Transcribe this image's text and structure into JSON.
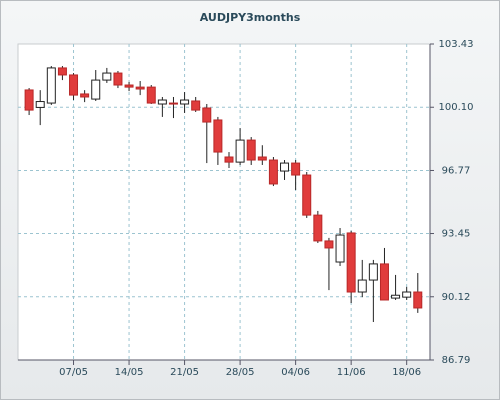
{
  "chart_data": {
    "type": "candlestick",
    "title": "AUDJPY3months",
    "categories": [
      null,
      null,
      null,
      null,
      "07/05",
      null,
      null,
      null,
      null,
      "14/05",
      null,
      null,
      null,
      null,
      "21/05",
      null,
      null,
      null,
      null,
      "28/05",
      null,
      null,
      null,
      null,
      "04/06",
      null,
      null,
      null,
      null,
      "11/06",
      null,
      null,
      null,
      null,
      "18/06",
      null
    ],
    "open": [
      101.01,
      100.09,
      100.32,
      102.17,
      101.8,
      100.8,
      100.53,
      101.53,
      101.9,
      101.27,
      101.16,
      101.16,
      100.27,
      100.32,
      100.27,
      100.43,
      100.06,
      99.43,
      97.48,
      97.21,
      98.37,
      97.48,
      97.32,
      96.74,
      97.16,
      96.53,
      94.42,
      93.06,
      91.95,
      93.48,
      90.37,
      91.0,
      91.85,
      90.05,
      90.1,
      90.37
    ],
    "high": [
      101.11,
      101.0,
      102.27,
      102.27,
      101.9,
      101.0,
      102.06,
      102.17,
      102.01,
      101.43,
      101.48,
      101.27,
      100.64,
      100.64,
      100.9,
      100.64,
      100.27,
      99.59,
      97.74,
      99.0,
      98.53,
      98.1,
      97.48,
      97.32,
      97.32,
      96.69,
      94.64,
      93.22,
      93.74,
      93.59,
      92.06,
      92.06,
      92.69,
      91.27,
      90.64,
      91.37
    ],
    "low": [
      99.69,
      99.16,
      100.22,
      101.53,
      100.48,
      100.37,
      100.43,
      101.38,
      101.11,
      100.95,
      100.74,
      100.27,
      99.59,
      99.53,
      99.8,
      99.85,
      97.16,
      97.06,
      96.9,
      97.06,
      97.06,
      97.06,
      95.95,
      96.27,
      95.74,
      94.27,
      92.95,
      90.47,
      91.74,
      89.79,
      90.1,
      88.79,
      90.05,
      89.95,
      89.95,
      89.27
    ],
    "close": [
      99.95,
      100.4,
      102.17,
      101.8,
      100.74,
      100.64,
      101.53,
      101.9,
      101.27,
      101.16,
      101.06,
      100.32,
      100.48,
      100.27,
      100.48,
      99.95,
      99.32,
      97.74,
      97.21,
      98.37,
      97.32,
      97.32,
      96.06,
      97.16,
      96.53,
      94.42,
      93.06,
      92.69,
      93.37,
      90.37,
      91.0,
      91.85,
      89.95,
      90.2,
      90.37,
      89.53
    ],
    "ylim": [
      86.79,
      103.43
    ],
    "yticks": [
      86.79,
      {
        "value": 90.12,
        "label": "90.12"
      },
      93.45,
      96.77,
      {
        "value": 100.1,
        "label": "100.10"
      },
      103.43
    ],
    "grid": true,
    "up_color": "#ffffff",
    "down_color": "#e03c3c"
  }
}
